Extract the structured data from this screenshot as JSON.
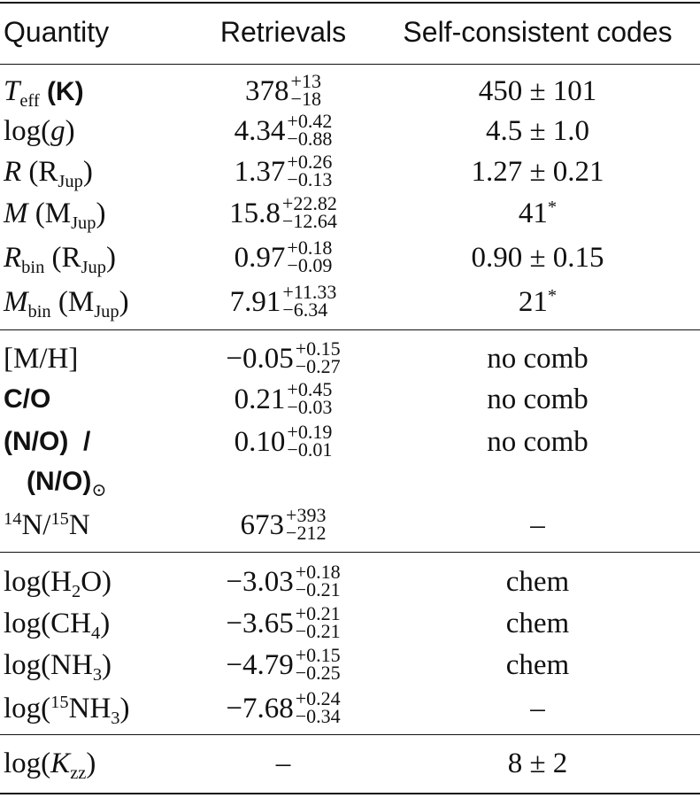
{
  "header": {
    "col1": "Quantity",
    "col2": "Retrievals",
    "col3": "Self-consistent codes"
  },
  "rows": [
    {
      "label": "T_eff (K)",
      "value": "378",
      "plus": "+13",
      "minus": "−18",
      "sc": "450 ± 101"
    },
    {
      "label": "log(g)",
      "value": "4.34",
      "plus": "+0.42",
      "minus": "−0.88",
      "sc": "4.5 ± 1.0"
    },
    {
      "label": "R (R_Jup)",
      "value": "1.37",
      "plus": "+0.26",
      "minus": "−0.13",
      "sc": "1.27 ± 0.21"
    },
    {
      "label": "M (M_Jup)",
      "value": "15.8",
      "plus": "+22.82",
      "minus": "−12.64",
      "sc": "41*"
    },
    {
      "label": "R_bin (R_Jup)",
      "value": "0.97",
      "plus": "+0.18",
      "minus": "−0.09",
      "sc": "0.90 ± 0.15"
    },
    {
      "label": "M_bin (M_Jup)",
      "value": "7.91",
      "plus": "+11.33",
      "minus": "−6.34",
      "sc": "21*"
    },
    {
      "label": "[M/H]",
      "value": "−0.05",
      "plus": "+0.15",
      "minus": "−0.27",
      "sc": "no comb"
    },
    {
      "label": "C/O",
      "value": "0.21",
      "plus": "+0.45",
      "minus": "−0.03",
      "sc": "no comb"
    },
    {
      "label": "(N/O) / (N/O)⊙",
      "value": "0.10",
      "plus": "+0.19",
      "minus": "−0.01",
      "sc": "no comb"
    },
    {
      "label": "14N/15N",
      "value": "673",
      "plus": "+393",
      "minus": "−212",
      "sc": "–"
    },
    {
      "label": "log(H2O)",
      "value": "−3.03",
      "plus": "+0.18",
      "minus": "−0.21",
      "sc": "chem"
    },
    {
      "label": "log(CH4)",
      "value": "−3.65",
      "plus": "+0.21",
      "minus": "−0.21",
      "sc": "chem"
    },
    {
      "label": "log(NH3)",
      "value": "−4.79",
      "plus": "+0.15",
      "minus": "−0.25",
      "sc": "chem"
    },
    {
      "label": "log(15NH3)",
      "value": "−7.68",
      "plus": "+0.24",
      "minus": "−0.34",
      "sc": "–"
    },
    {
      "label": "log(K_zz)",
      "value": "–",
      "plus": "",
      "minus": "",
      "sc": "8 ± 2"
    }
  ],
  "label_parts": {
    "teff_sym": "T",
    "teff_sub": "eff",
    "teff_unit": "(K)",
    "logg": "log(",
    "logg_g": "g",
    "logg_close": ")",
    "r_sym": "R",
    "r_unit_open": "(R",
    "r_unit_sub": "Jup",
    "r_unit_close": ")",
    "m_sym": "M",
    "m_unit_open": "(M",
    "m_unit_sub": "Jup",
    "m_unit_close": ")",
    "rbin_sym": "R",
    "rbin_sub": "bin",
    "rbin_unit_open": "(R",
    "rbin_unit_sub": "Jup",
    "rbin_unit_close": ")",
    "mbin_sym": "M",
    "mbin_sub": "bin",
    "mbin_unit_open": "(M",
    "mbin_unit_sub": "Jup",
    "mbin_unit_close": ")",
    "mh": "[M/H]",
    "co": "C/O",
    "no_top": "(N/O)  /",
    "no_bottom": "(N/O)",
    "no_sub": "⊙",
    "n14_sup": "14",
    "n14_mid": "N/",
    "n15_sup": "15",
    "n15_end": "N",
    "h2o_open": "log(H",
    "h2o_sub": "2",
    "h2o_close": "O)",
    "ch4_open": "log(CH",
    "ch4_sub": "4",
    "ch4_close": ")",
    "nh3_open": "log(NH",
    "nh3_sub": "3",
    "nh3_close": ")",
    "n15nh3_open": "log(",
    "n15nh3_sup": "15",
    "n15nh3_mid": "NH",
    "n15nh3_sub": "3",
    "n15nh3_close": ")",
    "kzz_open": "log(",
    "kzz_sym": "K",
    "kzz_sub": "zz",
    "kzz_close": ")",
    "m_star": "41",
    "mbin_star": "21",
    "star": "*"
  }
}
